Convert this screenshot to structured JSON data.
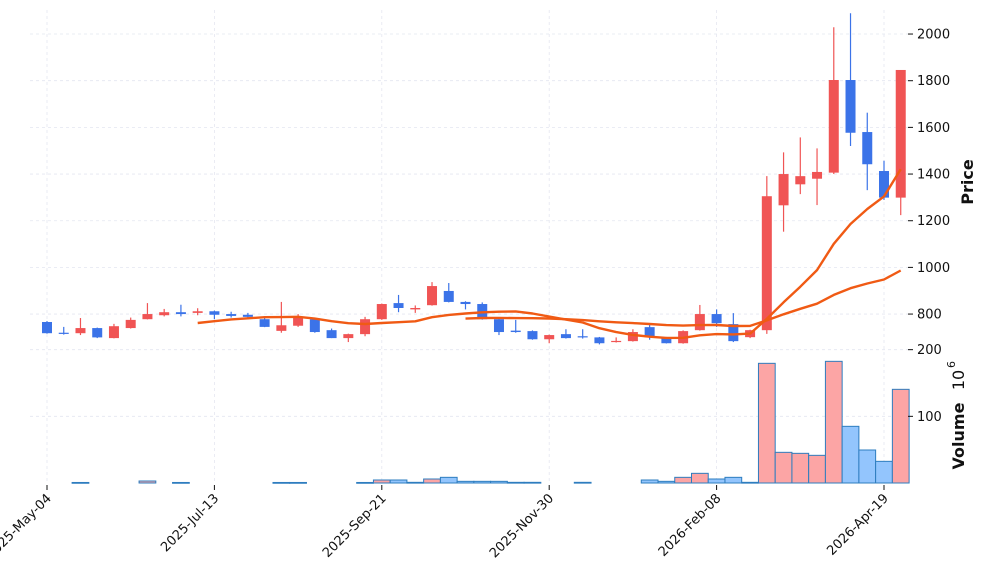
{
  "chart_data": {
    "type": "candlestick",
    "price_axis": {
      "label": "Price",
      "ticks": [
        800,
        1000,
        1200,
        1400,
        1600,
        1800,
        2000
      ],
      "ylim": [
        646,
        2103
      ]
    },
    "volume_axis": {
      "label": "Volume",
      "exponent_label": "10",
      "exponent": "6",
      "ticks": [
        100,
        200
      ],
      "ylim": [
        0,
        204
      ]
    },
    "x_tick_labels": [
      "2025-May-04",
      "2025-Jul-13",
      "2025-Sep-21",
      "2025-Nov-30",
      "2026-Feb-08",
      "2026-Apr-19"
    ],
    "x_tick_dates": [
      "2025-05-04",
      "2025-07-13",
      "2025-09-21",
      "2025-11-30",
      "2026-02-08",
      "2026-04-19"
    ],
    "grid": true,
    "moving_averages": [
      10,
      26
    ],
    "colors": {
      "up": "#f05454",
      "down": "#3b73e8",
      "volume_up": "#fca5a5",
      "volume_down": "#93c5fd",
      "volume_edge": "#2e7dbf",
      "ma": "#f05a14",
      "grid": "#e4e6f0"
    },
    "dates": [
      "2025-05-04",
      "2025-05-11",
      "2025-05-18",
      "2025-05-25",
      "2025-06-01",
      "2025-06-08",
      "2025-06-15",
      "2025-06-22",
      "2025-06-29",
      "2025-07-06",
      "2025-07-13",
      "2025-07-20",
      "2025-07-27",
      "2025-08-03",
      "2025-08-10",
      "2025-08-17",
      "2025-08-24",
      "2025-08-31",
      "2025-09-07",
      "2025-09-14",
      "2025-09-21",
      "2025-09-28",
      "2025-10-05",
      "2025-10-12",
      "2025-10-19",
      "2025-10-26",
      "2025-11-02",
      "2025-11-09",
      "2025-11-16",
      "2025-11-23",
      "2025-11-30",
      "2025-12-07",
      "2025-12-14",
      "2025-12-21",
      "2025-12-28",
      "2026-01-04",
      "2026-01-11",
      "2026-01-18",
      "2026-01-25",
      "2026-02-01",
      "2026-02-08",
      "2026-02-15",
      "2026-02-22",
      "2026-03-01",
      "2026-03-08",
      "2026-03-15",
      "2026-03-22",
      "2026-03-29",
      "2026-04-05",
      "2026-04-12",
      "2026-04-19",
      "2026-04-26"
    ],
    "open": [
      766,
      720,
      718,
      740,
      697,
      740,
      778,
      795,
      808,
      805,
      812,
      800,
      797,
      778,
      728,
      750,
      778,
      731,
      697,
      714,
      778,
      847,
      820,
      838,
      899,
      852,
      843,
      778,
      729,
      727,
      692,
      714,
      705,
      700,
      680,
      684,
      744,
      700,
      675,
      731,
      800,
      757,
      701,
      731,
      1266,
      1356,
      1380,
      1406,
      1803,
      1580,
      1413,
      1299
    ],
    "high": [
      770,
      745,
      783,
      742,
      758,
      785,
      847,
      822,
      840,
      825,
      815,
      810,
      805,
      790,
      852,
      800,
      780,
      738,
      716,
      788,
      845,
      882,
      837,
      937,
      933,
      855,
      850,
      780,
      775,
      730,
      712,
      735,
      735,
      702,
      700,
      735,
      760,
      702,
      730,
      839,
      820,
      804,
      733,
      1391,
      1493,
      1557,
      1510,
      2029,
      2089,
      1663,
      1457,
      1846
    ],
    "low": [
      716,
      712,
      710,
      697,
      696,
      738,
      777,
      790,
      790,
      795,
      778,
      785,
      783,
      744,
      720,
      745,
      720,
      697,
      680,
      705,
      775,
      808,
      805,
      836,
      850,
      820,
      776,
      710,
      720,
      690,
      675,
      695,
      695,
      670,
      678,
      682,
      690,
      674,
      673,
      729,
      745,
      680,
      697,
      715,
      1153,
      1314,
      1267,
      1400,
      1520,
      1331,
      1289,
      1224
    ],
    "close": [
      718,
      715,
      740,
      700,
      748,
      775,
      800,
      808,
      800,
      812,
      797,
      792,
      788,
      745,
      752,
      787,
      723,
      697,
      714,
      778,
      843,
      826,
      826,
      920,
      852,
      843,
      778,
      723,
      723,
      692,
      710,
      697,
      700,
      675,
      685,
      723,
      700,
      675,
      727,
      800,
      761,
      684,
      731,
      1305,
      1400,
      1391,
      1409,
      1803,
      1577,
      1442,
      1299,
      1846
    ],
    "volume": [
      0,
      0,
      0.8,
      0,
      0,
      0,
      3,
      0,
      0.8,
      0,
      0,
      0,
      0,
      0,
      0.8,
      0.8,
      0,
      0,
      0,
      0.8,
      4.5,
      4.5,
      1,
      6,
      8.5,
      2.5,
      2.5,
      2.5,
      1,
      1,
      0,
      0,
      1,
      0,
      0,
      0,
      4.5,
      2.5,
      8.5,
      14.5,
      6,
      8.5,
      1,
      179.5,
      46,
      44.5,
      41.5,
      182.5,
      85,
      49.5,
      32.5,
      140.5
    ]
  }
}
